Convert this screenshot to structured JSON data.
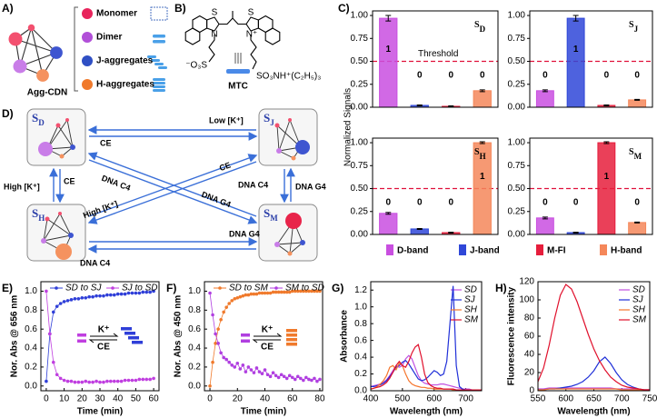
{
  "panel_labels": [
    "A)",
    "B)",
    "C)",
    "D)",
    "E)",
    "F)",
    "G)",
    "H)"
  ],
  "agg": {
    "name": "Agg-CDN",
    "legend": [
      {
        "label": "Monomer",
        "color": "#e8245c"
      },
      {
        "label": "Dimer",
        "color": "#b14fd8"
      },
      {
        "label": "J-aggregates",
        "color": "#2f4fc4"
      },
      {
        "label": "H-aggregates",
        "color": "#f07a2c"
      }
    ]
  },
  "structure": {
    "labels": [
      "S",
      "S",
      "N",
      "N⁺",
      "⁻O₃S",
      "SO₃NH⁺(C₂H₅)₃"
    ],
    "name": "MTC"
  },
  "scheme": {
    "states": [
      {
        "main": "S",
        "sub": "D"
      },
      {
        "main": "S",
        "sub": "J"
      },
      {
        "main": "S",
        "sub": "H"
      },
      {
        "main": "S",
        "sub": "M"
      }
    ],
    "arrows": [
      "Low [K⁺]",
      "CE",
      "CE",
      "High [K⁺]",
      "DNA C4",
      "High [K⁺]",
      "CE",
      "DNA G4",
      "DNA C4",
      "DNA G4",
      "DNA G4",
      "DNA C4"
    ]
  },
  "chart_data": [
    {
      "type": "bar-panels",
      "ylabel": "Normalized Signals",
      "ylim": [
        0,
        1.05
      ],
      "yticks": [
        {
          "value": 0,
          "label": "0.00"
        },
        {
          "value": 0.25,
          "label": "0.25"
        },
        {
          "value": 0.5,
          "label": "0.50"
        },
        {
          "value": 0.75,
          "label": "0.75"
        },
        {
          "value": 1,
          "label": "1.00"
        }
      ],
      "threshold": {
        "value": 0.5,
        "label": "Threshold"
      },
      "legend": [
        {
          "name": "D-band",
          "color": "#c94fe0"
        },
        {
          "name": "J-band",
          "color": "#2f47d8"
        },
        {
          "name": "M-FI",
          "color": "#e61e3c"
        },
        {
          "name": "H-band",
          "color": "#f5875a"
        }
      ],
      "panels": [
        {
          "title": "S",
          "sub": "D",
          "values": [
            0.97,
            0.02,
            0.01,
            0.18
          ],
          "errors": [
            0.03,
            0.005,
            0.005,
            0.01
          ],
          "value_labels": [
            "1",
            "0",
            "0",
            "0"
          ]
        },
        {
          "title": "S",
          "sub": "J",
          "values": [
            0.18,
            0.97,
            0.02,
            0.08
          ],
          "errors": [
            0.01,
            0.03,
            0.005,
            0.005
          ],
          "value_labels": [
            "0",
            "1",
            "0",
            "0"
          ]
        },
        {
          "title": "S",
          "sub": "H",
          "values": [
            0.23,
            0.06,
            0.02,
            1.0
          ],
          "errors": [
            0.01,
            0.005,
            0.005,
            0.01
          ],
          "value_labels": [
            "0",
            "0",
            "0",
            "1"
          ]
        },
        {
          "title": "S",
          "sub": "M",
          "values": [
            0.18,
            0.02,
            1.0,
            0.13
          ],
          "errors": [
            0.01,
            0.005,
            0.01,
            0.005
          ],
          "value_labels": [
            "0",
            "0",
            "1",
            "0"
          ]
        }
      ]
    },
    {
      "type": "line",
      "xlabel": "Time (min)",
      "ylabel": "Nor. Abs @ 656 nm",
      "markers": true,
      "legend": "top",
      "inset": {
        "top": "K⁺",
        "bottom": "CE"
      },
      "xlim": [
        -3,
        63
      ],
      "xticks": [
        0,
        10,
        20,
        30,
        40,
        50,
        60
      ],
      "ylim": [
        -0.05,
        1.1
      ],
      "yticks": [
        {
          "value": 0,
          "label": "0.0"
        },
        {
          "value": 0.2,
          "label": "0.2"
        },
        {
          "value": 0.4,
          "label": "0.4"
        },
        {
          "value": 0.6,
          "label": "0.6"
        },
        {
          "value": 0.8,
          "label": "0.8"
        },
        {
          "value": 1,
          "label": "1.0"
        }
      ],
      "x": [
        0,
        2,
        4,
        6,
        8,
        10,
        12,
        14,
        16,
        18,
        20,
        22,
        24,
        26,
        28,
        30,
        32,
        34,
        36,
        38,
        40,
        42,
        44,
        46,
        48,
        50,
        52,
        54,
        56,
        58,
        60
      ],
      "series": [
        {
          "name": "SD to SJ",
          "color": "#2f3fd8",
          "values": [
            0.05,
            0.55,
            0.78,
            0.84,
            0.87,
            0.89,
            0.9,
            0.91,
            0.92,
            0.92,
            0.93,
            0.93,
            0.94,
            0.94,
            0.95,
            0.95,
            0.95,
            0.96,
            0.96,
            0.96,
            0.97,
            0.97,
            0.97,
            0.98,
            0.98,
            0.98,
            0.98,
            0.99,
            0.99,
            0.99,
            1.0
          ]
        },
        {
          "name": "SJ to SD",
          "color": "#c03fe0",
          "values": [
            1.0,
            0.55,
            0.25,
            0.12,
            0.08,
            0.06,
            0.05,
            0.05,
            0.04,
            0.04,
            0.04,
            0.05,
            0.04,
            0.04,
            0.05,
            0.04,
            0.04,
            0.05,
            0.05,
            0.05,
            0.05,
            0.05,
            0.06,
            0.06,
            0.06,
            0.06,
            0.07,
            0.07,
            0.07,
            0.07,
            0.08
          ]
        }
      ]
    },
    {
      "type": "line",
      "xlabel": "Time (min)",
      "ylabel": "Nor. Abs @ 450 nm",
      "markers": true,
      "legend": "top",
      "inset": {
        "top": "K⁺",
        "bottom": "CE"
      },
      "xlim": [
        -4,
        82
      ],
      "xticks": [
        0,
        20,
        40,
        60,
        80
      ],
      "ylim": [
        -0.05,
        1.1
      ],
      "yticks": [
        {
          "value": 0,
          "label": "0.0"
        },
        {
          "value": 0.2,
          "label": "0.2"
        },
        {
          "value": 0.4,
          "label": "0.4"
        },
        {
          "value": 0.6,
          "label": "0.6"
        },
        {
          "value": 0.8,
          "label": "0.8"
        },
        {
          "value": 1,
          "label": "1.0"
        }
      ],
      "x": [
        0,
        2,
        4,
        6,
        8,
        10,
        12,
        14,
        16,
        18,
        20,
        22,
        24,
        26,
        28,
        30,
        32,
        34,
        36,
        38,
        40,
        42,
        44,
        46,
        48,
        50,
        52,
        54,
        56,
        58,
        60,
        62,
        64,
        66,
        68,
        70,
        72,
        74,
        76,
        78,
        80
      ],
      "series": [
        {
          "name": "SD to SM",
          "color": "#f07a2c",
          "values": [
            0.0,
            0.25,
            0.45,
            0.6,
            0.7,
            0.78,
            0.83,
            0.87,
            0.9,
            0.92,
            0.93,
            0.94,
            0.95,
            0.96,
            0.96,
            0.97,
            0.97,
            0.97,
            0.98,
            0.98,
            0.98,
            0.98,
            0.98,
            0.99,
            0.99,
            0.99,
            0.99,
            0.99,
            0.99,
            0.99,
            1.0,
            1.0,
            1.0,
            1.0,
            1.0,
            1.0,
            1.0,
            1.0,
            1.0,
            1.0,
            1.0
          ]
        },
        {
          "name": "SM to SD",
          "color": "#b03fe0",
          "values": [
            0.98,
            0.75,
            0.55,
            0.45,
            0.35,
            0.3,
            0.28,
            0.25,
            0.22,
            0.2,
            0.24,
            0.18,
            0.22,
            0.15,
            0.2,
            0.17,
            0.14,
            0.19,
            0.15,
            0.13,
            0.17,
            0.12,
            0.1,
            0.14,
            0.11,
            0.09,
            0.12,
            0.1,
            0.08,
            0.11,
            0.09,
            0.07,
            0.1,
            0.08,
            0.06,
            0.09,
            0.07,
            0.06,
            0.08,
            0.05,
            0.07
          ]
        }
      ]
    },
    {
      "type": "line",
      "xlabel": "Wavelength (nm)",
      "ylabel": "Absorbance",
      "markers": false,
      "legend": "upper right",
      "xlim": [
        400,
        750
      ],
      "xticks": [
        400,
        500,
        600,
        700
      ],
      "ylim": [
        0,
        1.3
      ],
      "yticks": [
        {
          "value": 0,
          "label": "0.0"
        },
        {
          "value": 0.2,
          "label": "0.2"
        },
        {
          "value": 0.4,
          "label": "0.4"
        },
        {
          "value": 0.6,
          "label": "0.6"
        },
        {
          "value": 0.8,
          "label": "0.8"
        },
        {
          "value": 1,
          "label": "1.0"
        },
        {
          "value": 1.2,
          "label": "1.2"
        }
      ],
      "x": [
        400,
        410,
        420,
        430,
        440,
        450,
        460,
        470,
        480,
        490,
        500,
        510,
        520,
        530,
        540,
        550,
        560,
        570,
        580,
        590,
        600,
        610,
        620,
        630,
        640,
        650,
        660,
        670,
        680,
        690,
        700,
        710,
        720,
        730,
        740,
        750
      ],
      "series": [
        {
          "name": "SD",
          "color": "#c04fe0",
          "values": [
            0.05,
            0.06,
            0.07,
            0.08,
            0.1,
            0.13,
            0.18,
            0.24,
            0.3,
            0.28,
            0.3,
            0.38,
            0.42,
            0.38,
            0.28,
            0.18,
            0.12,
            0.09,
            0.08,
            0.07,
            0.07,
            0.07,
            0.08,
            0.08,
            0.07,
            0.06,
            0.05,
            0.04,
            0.03,
            0.02,
            0.02,
            0.02,
            0.01,
            0.01,
            0.01,
            0.01
          ]
        },
        {
          "name": "SJ",
          "color": "#2030d8",
          "values": [
            0.05,
            0.05,
            0.06,
            0.07,
            0.09,
            0.12,
            0.17,
            0.22,
            0.28,
            0.3,
            0.34,
            0.36,
            0.32,
            0.26,
            0.2,
            0.14,
            0.12,
            0.13,
            0.16,
            0.2,
            0.24,
            0.22,
            0.18,
            0.2,
            0.35,
            0.8,
            1.25,
            0.3,
            0.05,
            0.02,
            0.01,
            0.01,
            0.01,
            0.01,
            0.01,
            0.01
          ]
        },
        {
          "name": "SH",
          "color": "#f5752c",
          "values": [
            0.02,
            0.03,
            0.05,
            0.08,
            0.12,
            0.18,
            0.28,
            0.3,
            0.25,
            0.33,
            0.3,
            0.2,
            0.12,
            0.08,
            0.06,
            0.05,
            0.04,
            0.04,
            0.03,
            0.03,
            0.02,
            0.02,
            0.02,
            0.02,
            0.02,
            0.02,
            0.01,
            0.01,
            0.01,
            0.01,
            0.01,
            0.01,
            0.01,
            0.01,
            0.01,
            0.01
          ]
        },
        {
          "name": "SM",
          "color": "#e0102c",
          "values": [
            0.02,
            0.03,
            0.04,
            0.05,
            0.07,
            0.1,
            0.15,
            0.22,
            0.3,
            0.35,
            0.3,
            0.28,
            0.35,
            0.45,
            0.52,
            0.55,
            0.4,
            0.2,
            0.1,
            0.06,
            0.04,
            0.03,
            0.03,
            0.02,
            0.02,
            0.02,
            0.02,
            0.01,
            0.01,
            0.01,
            0.01,
            0.01,
            0.01,
            0.01,
            0.01,
            0.01
          ]
        }
      ]
    },
    {
      "type": "line",
      "xlabel": "Wavelength (nm)",
      "ylabel": "Fluorescence intensity",
      "markers": false,
      "legend": "upper right",
      "xlim": [
        550,
        750
      ],
      "xticks": [
        550,
        600,
        650,
        700,
        750
      ],
      "ylim": [
        0,
        120
      ],
      "yticks": [
        0,
        20,
        40,
        60,
        80,
        100,
        120
      ],
      "x": [
        550,
        560,
        570,
        580,
        590,
        600,
        610,
        620,
        630,
        640,
        650,
        660,
        670,
        680,
        690,
        700,
        710,
        720,
        730,
        740,
        750
      ],
      "series": [
        {
          "name": "SD",
          "color": "#c04fe0",
          "values": [
            2,
            2,
            3,
            3,
            3,
            3,
            3,
            3,
            3,
            3,
            3,
            3,
            3,
            3,
            2,
            2,
            2,
            2,
            1,
            1,
            1
          ]
        },
        {
          "name": "SJ",
          "color": "#2030d8",
          "values": [
            1,
            1,
            2,
            2,
            3,
            4,
            5,
            7,
            10,
            15,
            22,
            32,
            37,
            30,
            20,
            12,
            7,
            4,
            2,
            1,
            1
          ]
        },
        {
          "name": "SH",
          "color": "#f5752c",
          "values": [
            1,
            1,
            2,
            2,
            2,
            2,
            2,
            2,
            2,
            2,
            2,
            2,
            2,
            2,
            2,
            1,
            1,
            1,
            1,
            1,
            1
          ]
        },
        {
          "name": "SM",
          "color": "#e0102c",
          "values": [
            10,
            25,
            50,
            80,
            105,
            117,
            112,
            98,
            80,
            62,
            46,
            33,
            23,
            15,
            10,
            6,
            4,
            3,
            2,
            1,
            1
          ]
        }
      ]
    }
  ]
}
